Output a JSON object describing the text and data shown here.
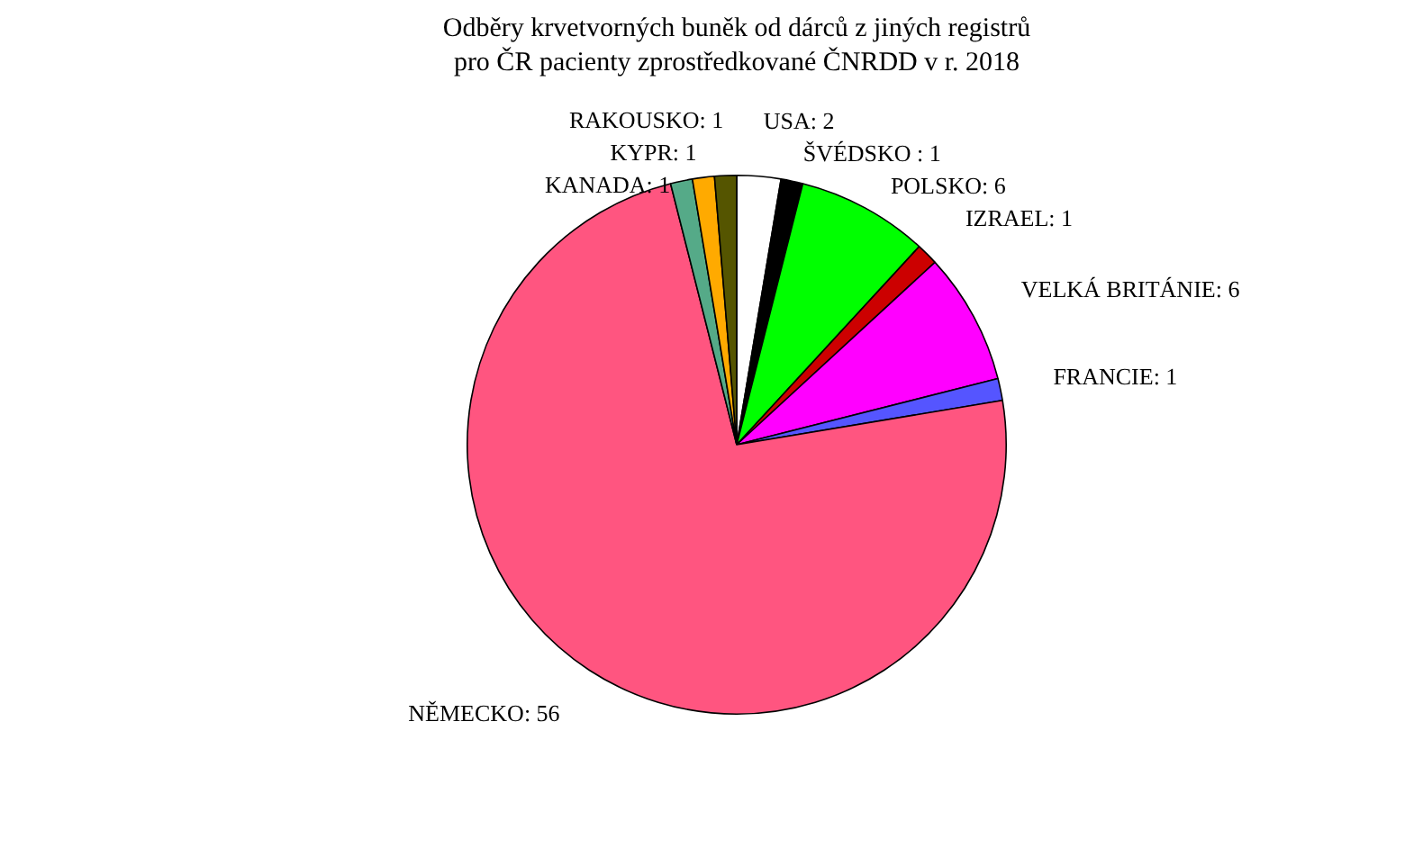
{
  "chart_data": {
    "type": "pie",
    "title": "Odběry krvetvorných buněk od dárců z jiných registrů\npro ČR pacienty zprostředkované ČNRDD v r. 2018",
    "categories": [
      "USA: 2",
      "ŠVÉDSKO : 1",
      "POLSKO: 6",
      "IZRAEL: 1",
      "VELKÁ BRITÁNIE: 6",
      "FRANCIE: 1",
      "NĚMECKO: 56",
      "KANADA: 1",
      "KYPR: 1",
      "RAKOUSKO: 1"
    ],
    "values": [
      2,
      1,
      6,
      1,
      6,
      1,
      56,
      1,
      1,
      1
    ],
    "colors": [
      "#ffffff",
      "#000000",
      "#00ff00",
      "#cc0000",
      "#ff00ff",
      "#5555ff",
      "#ff5580",
      "#55aa88",
      "#ffaa00",
      "#555500"
    ]
  }
}
